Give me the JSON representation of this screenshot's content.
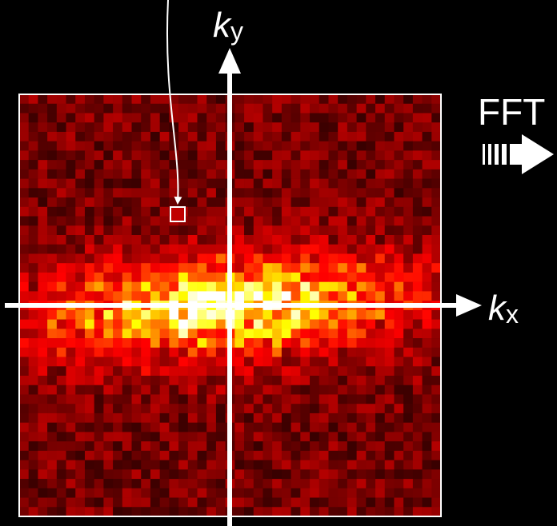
{
  "axes": {
    "ky": {
      "symbol": "k",
      "subscript": "y"
    },
    "kx": {
      "symbol": "k",
      "subscript": "x"
    }
  },
  "fft_label": "FFT"
}
